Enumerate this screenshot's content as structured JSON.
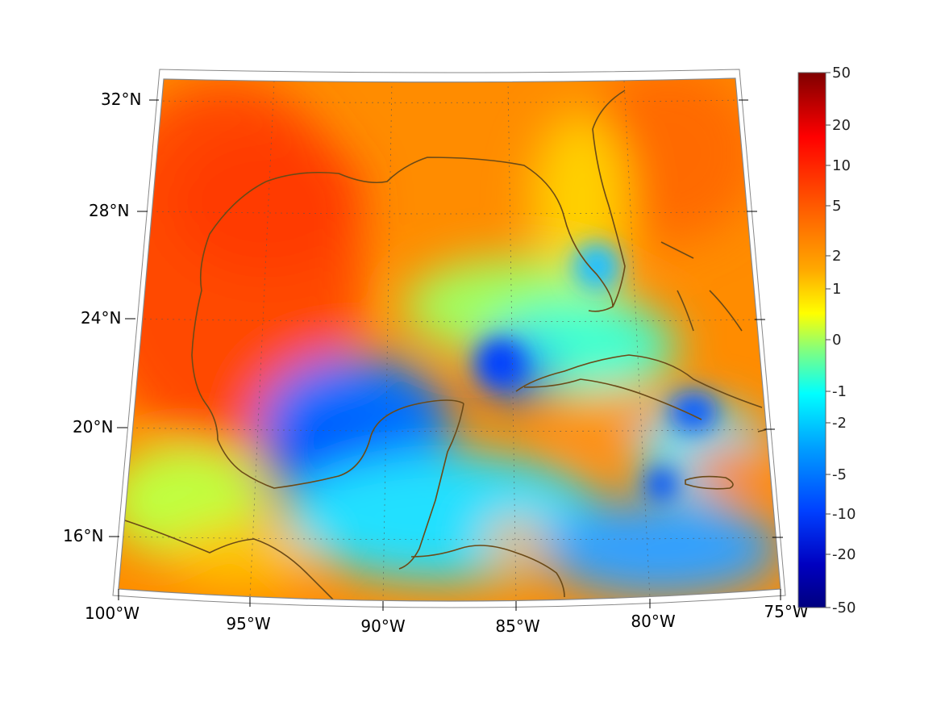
{
  "map": {
    "projection": "conic",
    "grid": true,
    "lon_ticks": [
      {
        "value": -100,
        "label": "100°W"
      },
      {
        "value": -95,
        "label": "95°W"
      },
      {
        "value": -90,
        "label": "90°W"
      },
      {
        "value": -85,
        "label": "85°W"
      },
      {
        "value": -80,
        "label": "80°W"
      },
      {
        "value": -75,
        "label": "75°W"
      }
    ],
    "lat_ticks": [
      {
        "value": 32,
        "label": "32°N"
      },
      {
        "value": 28,
        "label": "28°N"
      },
      {
        "value": 24,
        "label": "24°N"
      },
      {
        "value": 20,
        "label": "20°N"
      },
      {
        "value": 16,
        "label": "16°N"
      }
    ],
    "extent": {
      "lon": [
        -100,
        -75
      ],
      "lat": [
        14,
        33
      ]
    },
    "coastline_color": "#6b4a17"
  },
  "colorbar": {
    "colormap": "jet",
    "placement": "right",
    "ticks": [
      "50",
      "20",
      "10",
      "5",
      "2",
      "1",
      "0",
      "-1",
      "-2",
      "-5",
      "-10",
      "-20",
      "-50"
    ]
  }
}
